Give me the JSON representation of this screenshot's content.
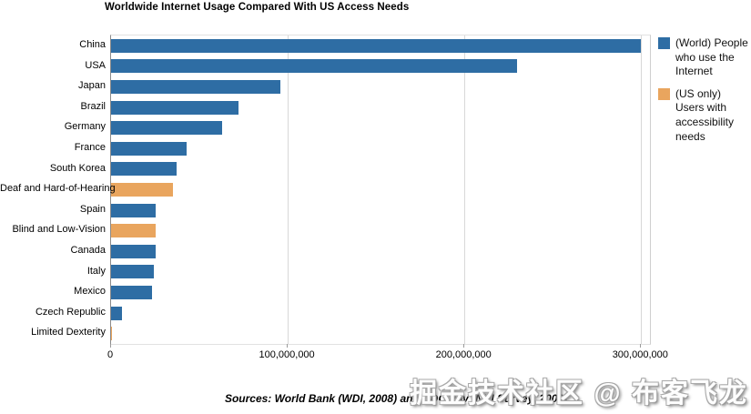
{
  "watermark": "掘金技术社区 @ 布客飞龙",
  "chart_data": {
    "type": "bar",
    "orientation": "horizontal",
    "title": "Worldwide Internet Usage Compared With US Access Needs",
    "categories": [
      "China",
      "USA",
      "Japan",
      "Brazil",
      "Germany",
      "France",
      "South Korea",
      "Deaf and Hard-of-Hearing",
      "Spain",
      "Blind and Low-Vision",
      "Canada",
      "Italy",
      "Mexico",
      "Czech Republic",
      "Limited Dexterity"
    ],
    "values": [
      300000000,
      230000000,
      96000000,
      72000000,
      63000000,
      43000000,
      37000000,
      35000000,
      25000000,
      25000000,
      25000000,
      24000000,
      23000000,
      6000000,
      500000
    ],
    "groups": [
      "world",
      "world",
      "world",
      "world",
      "world",
      "world",
      "world",
      "us_accessibility",
      "world",
      "us_accessibility",
      "world",
      "world",
      "world",
      "world",
      "us_accessibility"
    ],
    "legend": [
      {
        "key": "world",
        "label": "(World) People who use the Internet",
        "color": "#2e6da4"
      },
      {
        "key": "us_accessibility",
        "label": "(US only) Users with accessibility needs",
        "color": "#e9a55e"
      }
    ],
    "legend_position": "right",
    "xlabel": "",
    "ylabel": "",
    "xlim": [
      0,
      305000000
    ],
    "x_ticks": [
      {
        "value": 0,
        "label": "0"
      },
      {
        "value": 100000000,
        "label": "100,000,000"
      },
      {
        "value": 200000000,
        "label": "200,000,000"
      },
      {
        "value": 300000000,
        "label": "300,000,000"
      }
    ],
    "gridlines": [
      100000000,
      200000000,
      300000000
    ],
    "grid": true,
    "source_note": "Sources: World Bank (WDI, 2008) and CDC.gov (NHI Survey, 2008)"
  },
  "colors": {
    "world_bar": "#2e6da4",
    "accessibility_bar": "#e9a55e",
    "gridline": "#d8d8d8",
    "axis": "#8a8a8a",
    "background": "#ffffff"
  }
}
